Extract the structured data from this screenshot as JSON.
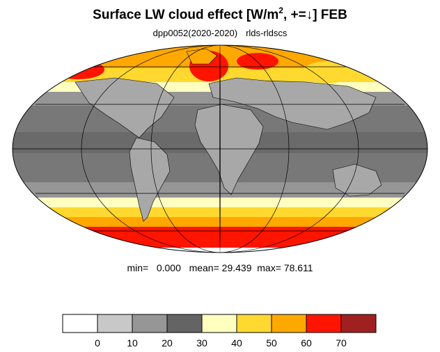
{
  "title": {
    "main": "Surface LW cloud effect [W/m",
    "superscript": "2",
    "suffix": ", +=↓]  FEB"
  },
  "subtitle": {
    "left": "dpp0052(2020-2020)",
    "right": "rlds-rldscs"
  },
  "stats": {
    "min_label": "min=",
    "min_value": "0.000",
    "mean_label": "mean=",
    "mean_value": "29.439",
    "max_label": "max=",
    "max_value": "78.611"
  },
  "map": {
    "projection": "Mollweide",
    "graticule": true,
    "land_fill": "#a8a8a8",
    "ocean_dominant": "#6a6a6a"
  },
  "colorbar": {
    "tick_labels": [
      "0",
      "10",
      "20",
      "30",
      "40",
      "50",
      "60",
      "70"
    ],
    "bins": [
      {
        "color": "#ffffff"
      },
      {
        "color": "#c8c8c8"
      },
      {
        "color": "#969696"
      },
      {
        "color": "#646464"
      },
      {
        "color": "#ffffc0"
      },
      {
        "color": "#ffd830"
      },
      {
        "color": "#ffa800"
      },
      {
        "color": "#ff1400"
      },
      {
        "color": "#a02020"
      }
    ]
  }
}
